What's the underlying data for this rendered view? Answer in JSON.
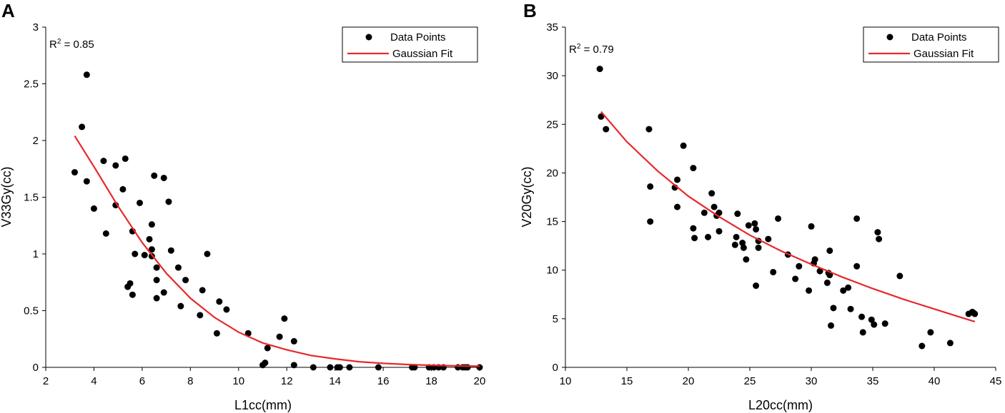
{
  "chart_data": [
    {
      "panel": "A",
      "type": "scatter",
      "xlabel": "L1cc(mm)",
      "ylabel": "V33Gy(cc)",
      "xlim": [
        2,
        20
      ],
      "ylim": [
        0,
        3
      ],
      "xticks": [
        2,
        4,
        6,
        8,
        10,
        12,
        14,
        16,
        18,
        20
      ],
      "yticks": [
        0,
        0.5,
        1,
        1.5,
        2,
        2.5,
        3
      ],
      "ytick_labels": [
        "0",
        "0.5",
        "1",
        "1.5",
        "2",
        "2.5",
        "3"
      ],
      "r2_prefix": "R",
      "r2_sup": "2",
      "r2_value": " = 0.85",
      "legend": {
        "points": "Data Points",
        "fit": "Gaussian Fit"
      },
      "point_color": "#000000",
      "fit_color": "#e8282a",
      "points": [
        [
          3.2,
          1.72
        ],
        [
          3.5,
          2.12
        ],
        [
          3.7,
          2.58
        ],
        [
          3.7,
          1.64
        ],
        [
          4.0,
          1.4
        ],
        [
          4.4,
          1.82
        ],
        [
          4.5,
          1.18
        ],
        [
          4.9,
          1.78
        ],
        [
          4.9,
          1.43
        ],
        [
          5.2,
          1.57
        ],
        [
          5.3,
          1.84
        ],
        [
          5.4,
          0.71
        ],
        [
          5.5,
          0.74
        ],
        [
          5.6,
          1.2
        ],
        [
          5.6,
          0.64
        ],
        [
          5.7,
          1.0
        ],
        [
          5.9,
          1.45
        ],
        [
          6.1,
          0.99
        ],
        [
          6.3,
          1.13
        ],
        [
          6.4,
          1.26
        ],
        [
          6.4,
          1.04
        ],
        [
          6.4,
          0.98
        ],
        [
          6.5,
          1.69
        ],
        [
          6.6,
          0.88
        ],
        [
          6.6,
          0.77
        ],
        [
          6.6,
          0.61
        ],
        [
          6.9,
          1.67
        ],
        [
          6.9,
          0.66
        ],
        [
          7.1,
          1.46
        ],
        [
          7.2,
          1.03
        ],
        [
          7.5,
          0.88
        ],
        [
          7.6,
          0.54
        ],
        [
          7.8,
          0.77
        ],
        [
          8.4,
          0.46
        ],
        [
          8.5,
          0.68
        ],
        [
          8.7,
          1.0
        ],
        [
          9.1,
          0.3
        ],
        [
          9.2,
          0.58
        ],
        [
          9.5,
          0.51
        ],
        [
          10.4,
          0.3
        ],
        [
          11.0,
          0.02
        ],
        [
          11.1,
          0.04
        ],
        [
          11.2,
          0.17
        ],
        [
          11.7,
          0.27
        ],
        [
          11.9,
          0.43
        ],
        [
          12.3,
          0.23
        ],
        [
          12.3,
          0.02
        ],
        [
          13.1,
          0.0
        ],
        [
          13.8,
          0.0
        ],
        [
          14.1,
          0.0
        ],
        [
          14.2,
          0.0
        ],
        [
          14.6,
          0.0
        ],
        [
          15.8,
          0.0
        ],
        [
          17.2,
          0.0
        ],
        [
          17.3,
          0.0
        ],
        [
          17.9,
          0.0
        ],
        [
          18.1,
          0.0
        ],
        [
          18.3,
          0.0
        ],
        [
          18.5,
          0.0
        ],
        [
          19.1,
          0.0
        ],
        [
          19.3,
          0.0
        ],
        [
          19.4,
          0.0
        ],
        [
          19.5,
          0.0
        ],
        [
          20.0,
          0.0
        ]
      ],
      "fit": [
        [
          3.2,
          2.04
        ],
        [
          4,
          1.77
        ],
        [
          5,
          1.42
        ],
        [
          6,
          1.1
        ],
        [
          7,
          0.83
        ],
        [
          8,
          0.61
        ],
        [
          9,
          0.44
        ],
        [
          10,
          0.31
        ],
        [
          11,
          0.215
        ],
        [
          12,
          0.155
        ],
        [
          13,
          0.105
        ],
        [
          14,
          0.075
        ],
        [
          15,
          0.05
        ],
        [
          16,
          0.035
        ],
        [
          17,
          0.025
        ],
        [
          18,
          0.018
        ],
        [
          19,
          0.013
        ],
        [
          20,
          0.01
        ]
      ]
    },
    {
      "panel": "B",
      "type": "scatter",
      "xlabel": "L20cc(mm)",
      "ylabel": "V20Gy(cc)",
      "xlim": [
        10,
        45
      ],
      "ylim": [
        0,
        35
      ],
      "xticks": [
        10,
        15,
        20,
        25,
        30,
        35,
        40,
        45
      ],
      "yticks": [
        0,
        5,
        10,
        15,
        20,
        25,
        30,
        35
      ],
      "ytick_labels": [
        "0",
        "5",
        "10",
        "15",
        "20",
        "25",
        "30",
        "35"
      ],
      "r2_prefix": "R",
      "r2_sup": "2",
      "r2_value": " = 0.79",
      "legend": {
        "points": "Data Points",
        "fit": "Gaussian Fit"
      },
      "point_color": "#000000",
      "fit_color": "#e8282a",
      "points": [
        [
          12.8,
          30.7
        ],
        [
          12.9,
          25.8
        ],
        [
          13.3,
          24.5
        ],
        [
          16.8,
          24.5
        ],
        [
          16.9,
          18.6
        ],
        [
          16.9,
          15.0
        ],
        [
          18.9,
          18.5
        ],
        [
          19.1,
          19.3
        ],
        [
          19.1,
          16.5
        ],
        [
          19.6,
          22.8
        ],
        [
          20.4,
          20.5
        ],
        [
          20.4,
          14.3
        ],
        [
          20.5,
          13.3
        ],
        [
          21.3,
          15.9
        ],
        [
          21.6,
          13.4
        ],
        [
          21.9,
          17.9
        ],
        [
          22.1,
          16.5
        ],
        [
          22.3,
          15.6
        ],
        [
          22.5,
          15.9
        ],
        [
          22.5,
          14.0
        ],
        [
          23.8,
          12.6
        ],
        [
          23.9,
          13.4
        ],
        [
          24.0,
          15.8
        ],
        [
          24.4,
          12.8
        ],
        [
          24.5,
          12.3
        ],
        [
          24.7,
          11.1
        ],
        [
          24.9,
          14.6
        ],
        [
          25.4,
          14.8
        ],
        [
          25.5,
          14.2
        ],
        [
          25.5,
          8.4
        ],
        [
          25.7,
          13.0
        ],
        [
          25.7,
          12.3
        ],
        [
          26.5,
          13.2
        ],
        [
          26.9,
          9.8
        ],
        [
          27.3,
          15.3
        ],
        [
          28.1,
          11.6
        ],
        [
          28.7,
          9.1
        ],
        [
          29.0,
          10.4
        ],
        [
          29.8,
          7.9
        ],
        [
          30.0,
          14.5
        ],
        [
          30.2,
          10.7
        ],
        [
          30.3,
          11.1
        ],
        [
          30.7,
          9.9
        ],
        [
          31.3,
          8.7
        ],
        [
          31.4,
          9.7
        ],
        [
          31.5,
          12.0
        ],
        [
          31.5,
          9.5
        ],
        [
          31.6,
          4.3
        ],
        [
          31.8,
          6.1
        ],
        [
          32.6,
          7.9
        ],
        [
          33.0,
          8.2
        ],
        [
          33.2,
          6.0
        ],
        [
          33.7,
          15.3
        ],
        [
          33.7,
          10.4
        ],
        [
          34.1,
          5.2
        ],
        [
          34.2,
          3.6
        ],
        [
          34.9,
          4.9
        ],
        [
          35.1,
          4.4
        ],
        [
          35.4,
          13.9
        ],
        [
          35.5,
          13.2
        ],
        [
          36.0,
          4.5
        ],
        [
          37.2,
          9.4
        ],
        [
          39.0,
          2.2
        ],
        [
          39.7,
          3.6
        ],
        [
          41.3,
          2.5
        ],
        [
          42.8,
          5.5
        ],
        [
          43.1,
          5.7
        ],
        [
          43.2,
          5.6
        ],
        [
          43.3,
          5.5
        ]
      ],
      "fit": [
        [
          12.9,
          26.3
        ],
        [
          15,
          23.2
        ],
        [
          17.5,
          20.2
        ],
        [
          20,
          17.6
        ],
        [
          22.5,
          15.5
        ],
        [
          25,
          13.6
        ],
        [
          27.5,
          12.0
        ],
        [
          30,
          10.6
        ],
        [
          32.5,
          9.3
        ],
        [
          35,
          8.1
        ],
        [
          37.5,
          7.0
        ],
        [
          40,
          6.0
        ],
        [
          42,
          5.2
        ],
        [
          43.3,
          4.7
        ]
      ]
    }
  ]
}
